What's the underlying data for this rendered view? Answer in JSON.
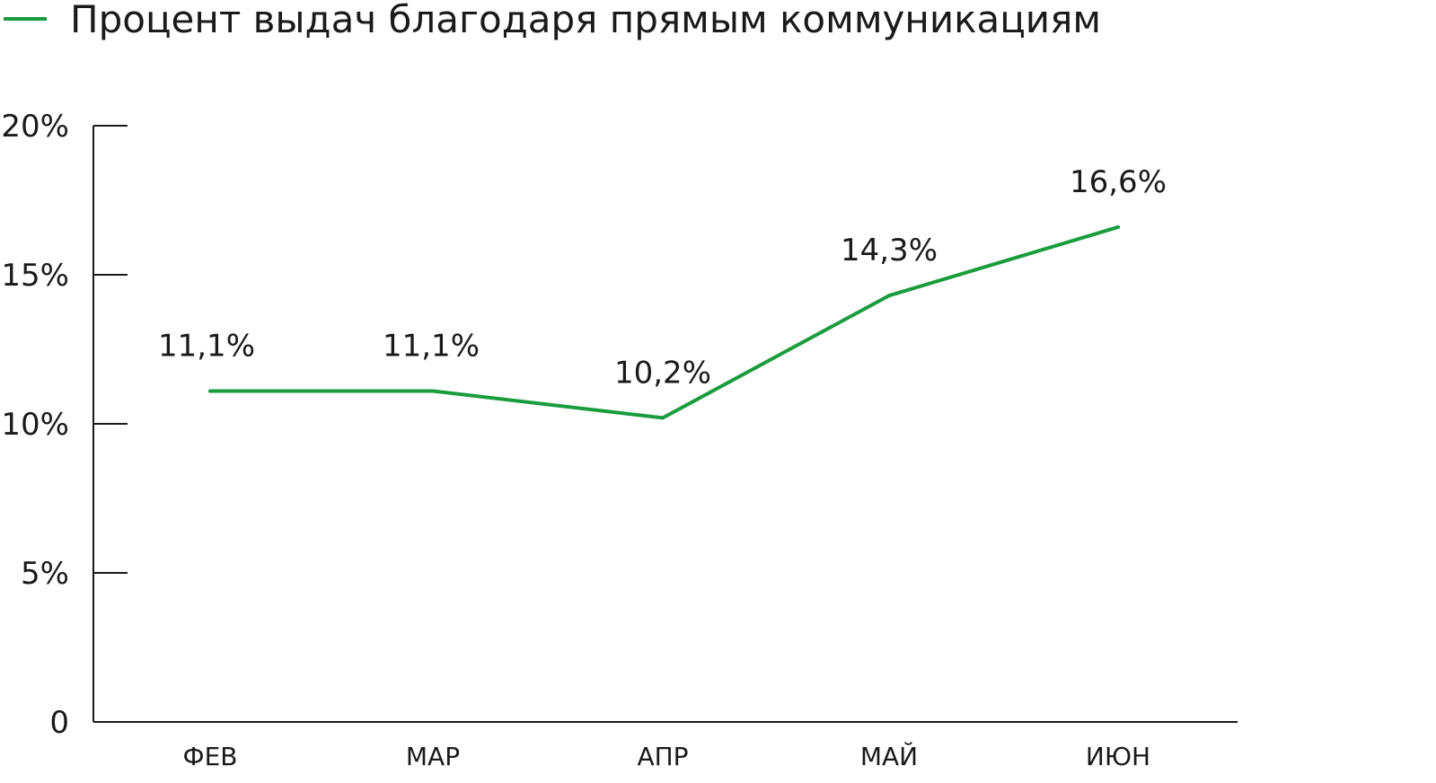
{
  "chart_data": {
    "type": "line",
    "categories": [
      "ФЕВ",
      "МАР",
      "АПР",
      "МАЙ",
      "ИЮН"
    ],
    "series": [
      {
        "name": "Процент выдач благодаря прямым коммуникациям",
        "values": [
          11.1,
          11.1,
          10.2,
          14.3,
          16.6
        ],
        "labels": [
          "11,1%",
          "11,1%",
          "10,2%",
          "14,3%",
          "16,6%"
        ],
        "color": "#1a9c3e"
      }
    ],
    "yticks": [
      {
        "value": 0,
        "label": "0"
      },
      {
        "value": 5,
        "label": "5%"
      },
      {
        "value": 10,
        "label": "10%"
      },
      {
        "value": 15,
        "label": "15%"
      },
      {
        "value": 20,
        "label": "20%"
      }
    ],
    "ylim": [
      0,
      20
    ],
    "legend_position": "top-left",
    "grid": false,
    "axis_color": "#1a1a1a"
  }
}
